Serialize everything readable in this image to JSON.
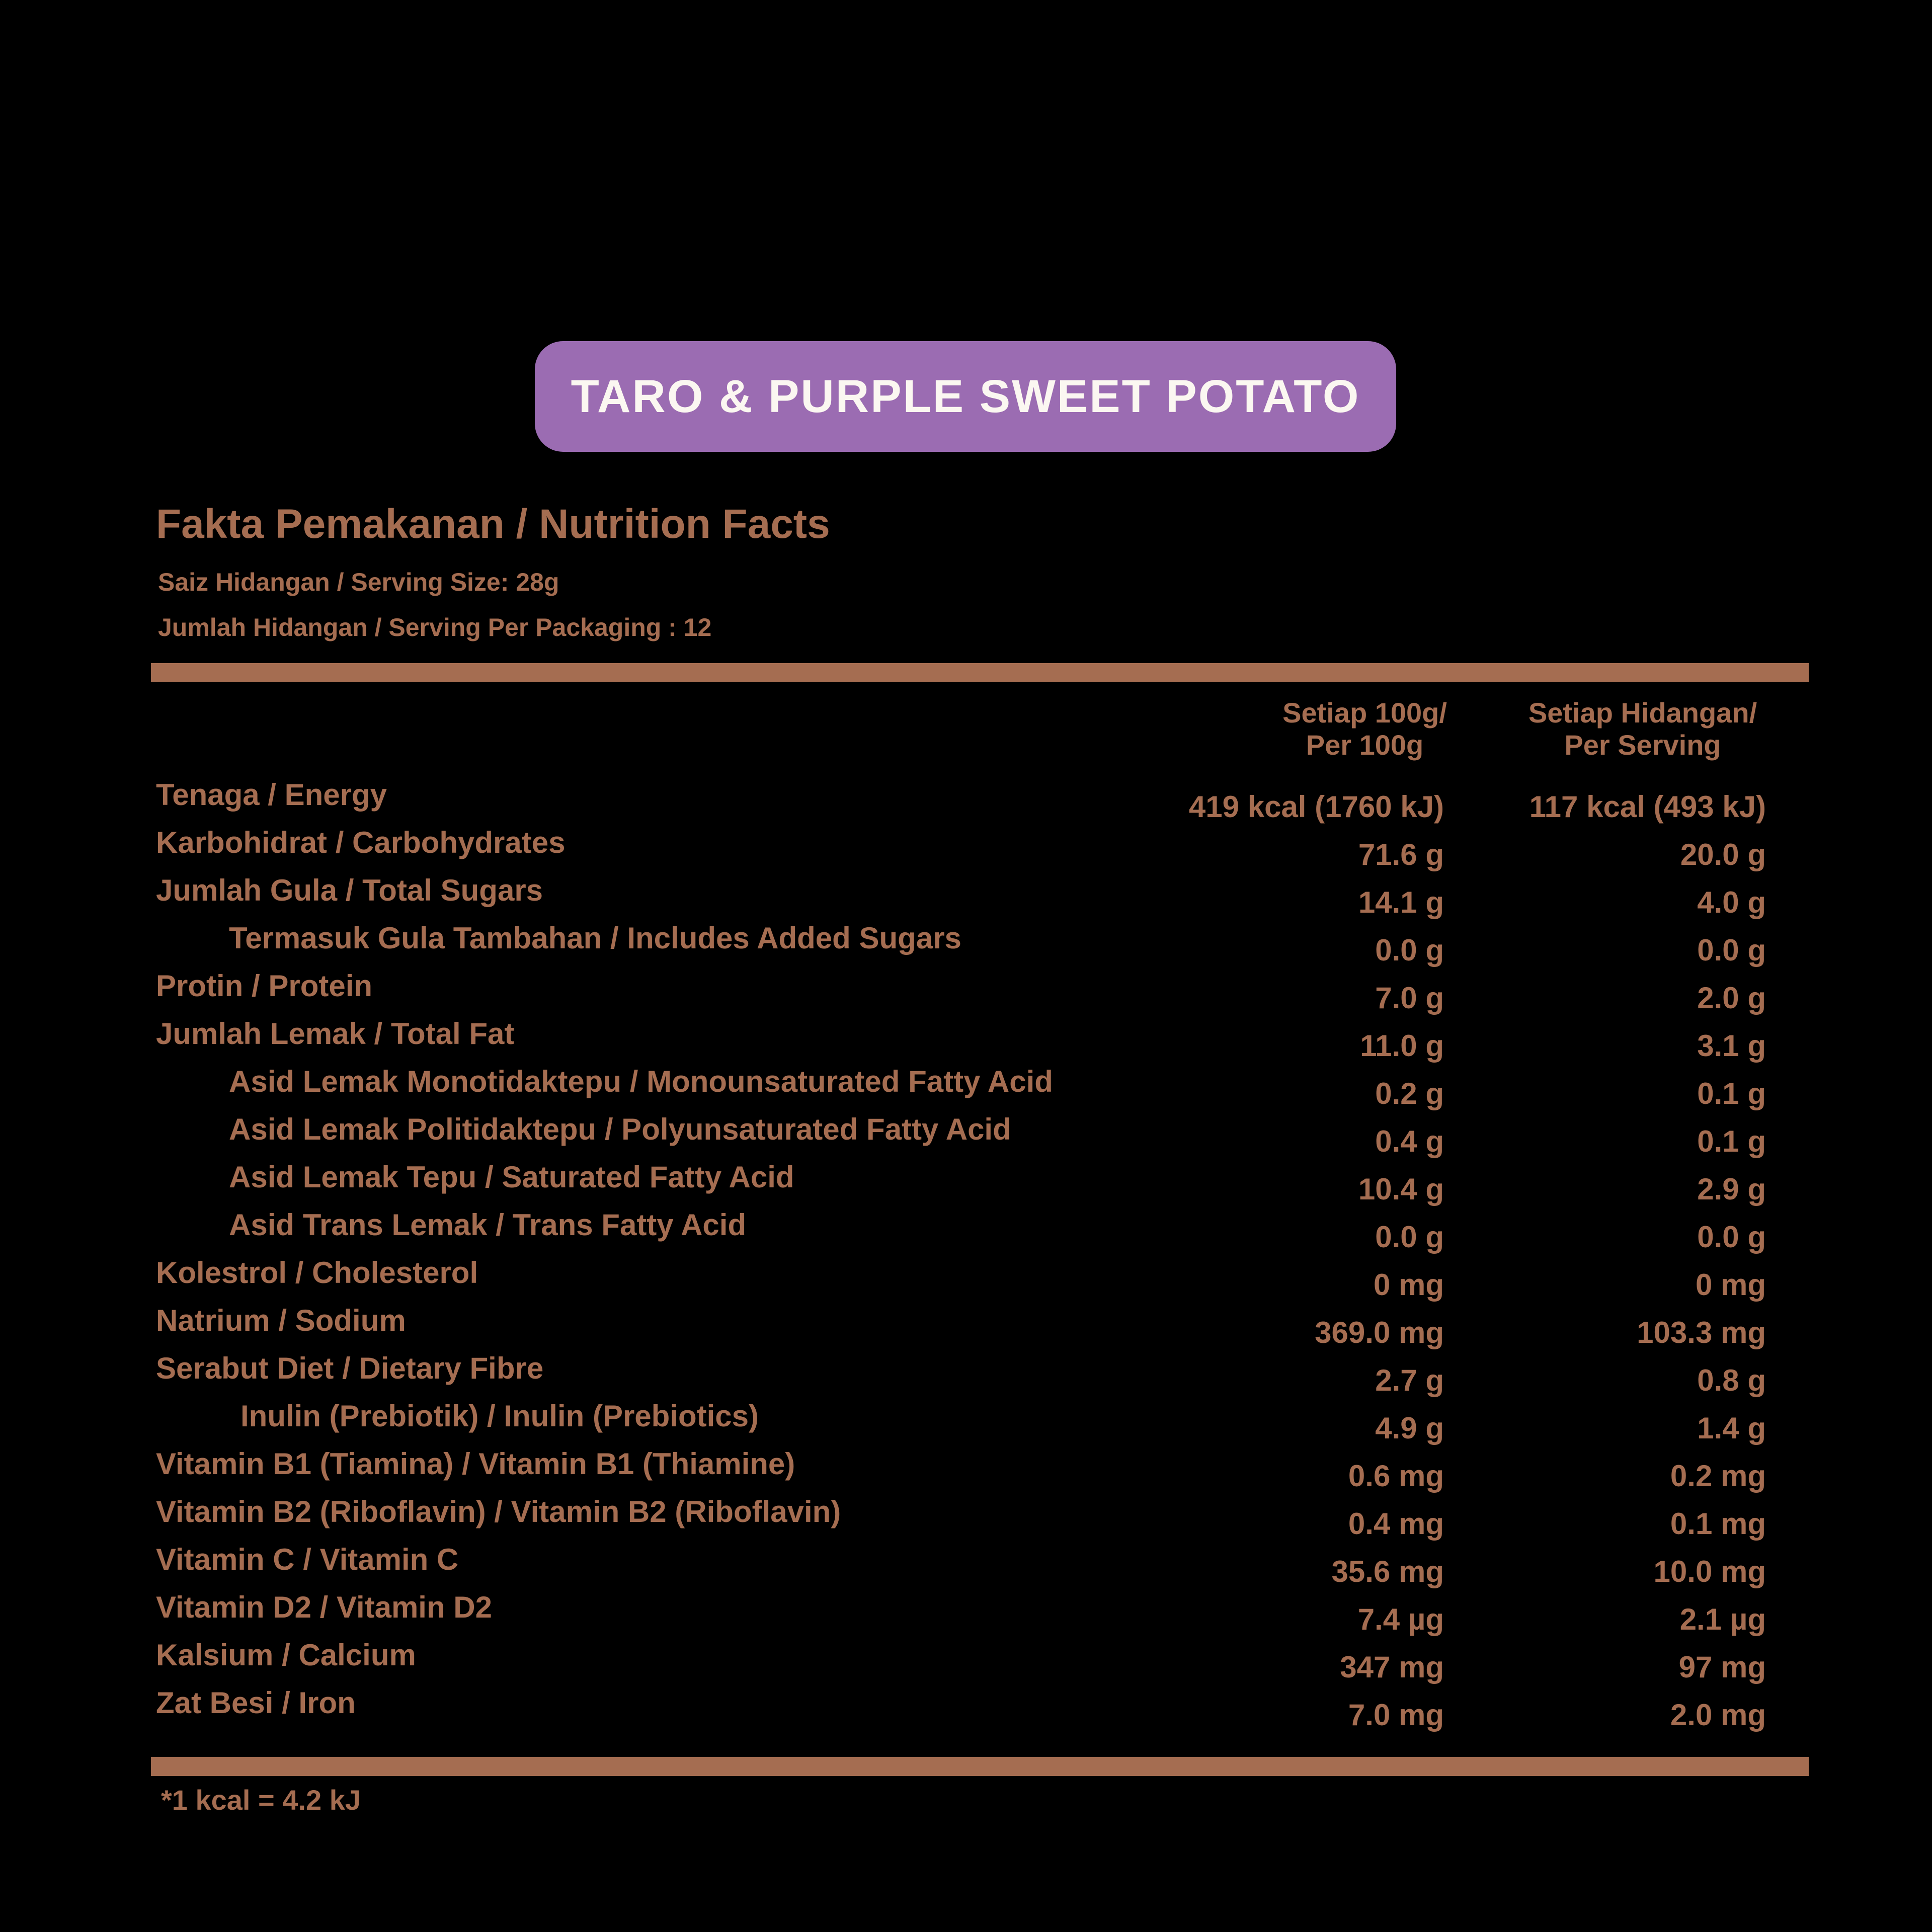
{
  "badge": {
    "label": "TARO & PURPLE SWEET POTATO"
  },
  "header": {
    "title": "Fakta Pemakanan / Nutrition Facts",
    "serving_size": "Saiz Hidangan / Serving Size: 28g",
    "servings_per_pack": "Jumlah Hidangan / Serving Per Packaging : 12"
  },
  "columns": {
    "per_100g": {
      "line1": "Setiap 100g/",
      "line2": "Per 100g"
    },
    "per_serving": {
      "line1": "Setiap Hidangan/",
      "line2": "Per Serving"
    }
  },
  "rows": [
    {
      "label": "Tenaga / Energy",
      "indent": 0,
      "per_100g": "419 kcal (1760 kJ)",
      "per_serving": "117 kcal (493 kJ)"
    },
    {
      "label": "Karbohidrat / Carbohydrates",
      "indent": 0,
      "per_100g": "71.6 g",
      "per_serving": "20.0 g"
    },
    {
      "label": "Jumlah Gula / Total Sugars",
      "indent": 0,
      "per_100g": "14.1 g",
      "per_serving": "4.0 g"
    },
    {
      "label": "Termasuk Gula Tambahan / Includes Added Sugars",
      "indent": 1,
      "per_100g": "0.0 g",
      "per_serving": "0.0 g"
    },
    {
      "label": "Protin / Protein",
      "indent": 0,
      "per_100g": "7.0 g",
      "per_serving": "2.0 g"
    },
    {
      "label": "Jumlah Lemak / Total Fat",
      "indent": 0,
      "per_100g": "11.0 g",
      "per_serving": "3.1 g"
    },
    {
      "label": "Asid Lemak Monotidaktepu / Monounsaturated Fatty Acid",
      "indent": 1,
      "per_100g": "0.2 g",
      "per_serving": "0.1 g"
    },
    {
      "label": "Asid Lemak Politidaktepu / Polyunsaturated Fatty Acid",
      "indent": 1,
      "per_100g": "0.4 g",
      "per_serving": "0.1 g"
    },
    {
      "label": "Asid Lemak Tepu / Saturated Fatty Acid",
      "indent": 1,
      "per_100g": "10.4 g",
      "per_serving": "2.9 g"
    },
    {
      "label": "Asid Trans Lemak / Trans Fatty Acid",
      "indent": 1,
      "per_100g": "0.0 g",
      "per_serving": "0.0 g"
    },
    {
      "label": "Kolestrol / Cholesterol",
      "indent": 0,
      "per_100g": "0 mg",
      "per_serving": "0 mg"
    },
    {
      "label": "Natrium / Sodium",
      "indent": 0,
      "per_100g": "369.0 mg",
      "per_serving": "103.3 mg"
    },
    {
      "label": "Serabut Diet / Dietary Fibre",
      "indent": 0,
      "per_100g": "2.7 g",
      "per_serving": "0.8 g"
    },
    {
      "label": "Inulin (Prebiotik) / Inulin (Prebiotics)",
      "indent": 2,
      "per_100g": "4.9 g",
      "per_serving": "1.4 g"
    },
    {
      "label": "Vitamin B1 (Tiamina) / Vitamin B1 (Thiamine)",
      "indent": 0,
      "per_100g": "0.6 mg",
      "per_serving": "0.2 mg"
    },
    {
      "label": "Vitamin B2 (Riboflavin) / Vitamin B2 (Riboflavin)",
      "indent": 0,
      "per_100g": "0.4 mg",
      "per_serving": "0.1 mg"
    },
    {
      "label": "Vitamin C / Vitamin C",
      "indent": 0,
      "per_100g": "35.6 mg",
      "per_serving": "10.0 mg"
    },
    {
      "label": "Vitamin D2 / Vitamin D2",
      "indent": 0,
      "per_100g": "7.4 µg",
      "per_serving": "2.1 µg"
    },
    {
      "label": "Kalsium / Calcium",
      "indent": 0,
      "per_100g": "347 mg",
      "per_serving": "97 mg"
    },
    {
      "label": "Zat Besi / Iron",
      "indent": 0,
      "per_100g": "7.0 mg",
      "per_serving": "2.0 mg"
    }
  ],
  "footnote": "*1 kcal = 4.2 kJ",
  "colors": {
    "background": "#000000",
    "text": "#A56D51",
    "badge_bg": "#9B6CB2",
    "badge_text": "#FBF7F1"
  }
}
